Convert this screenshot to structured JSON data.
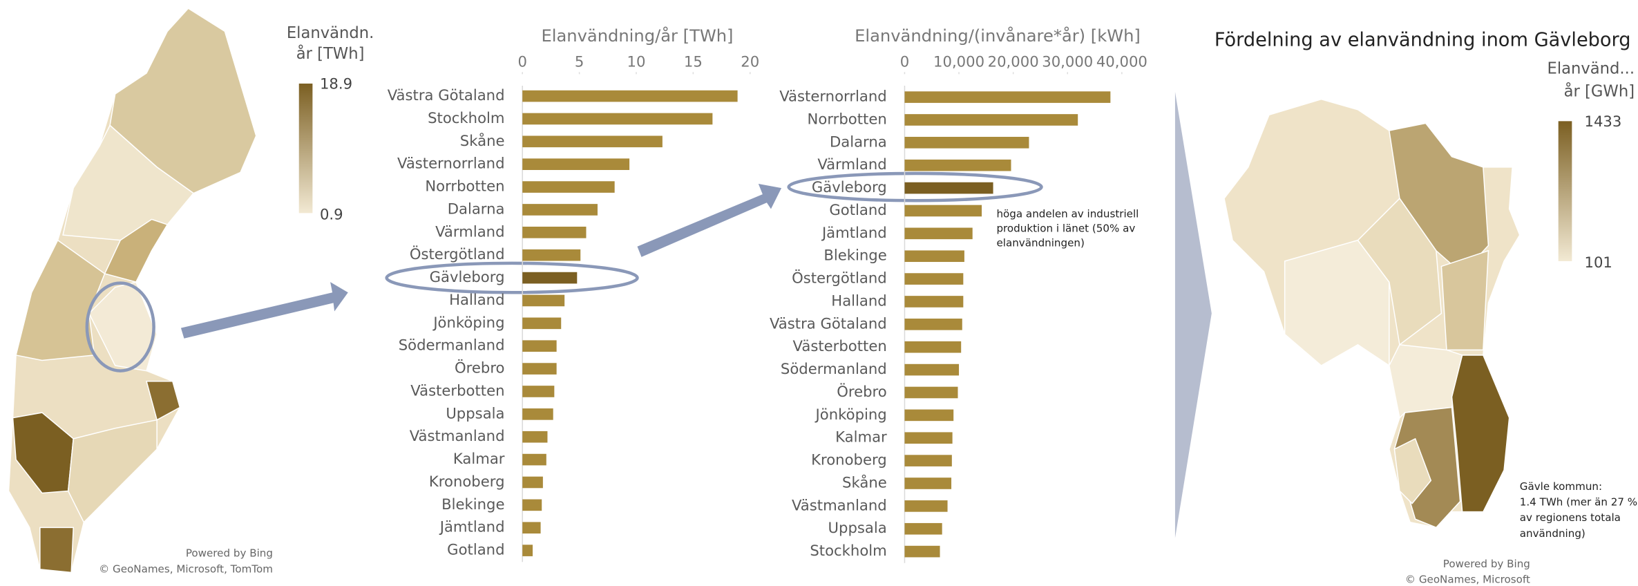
{
  "chart_data": [
    {
      "type": "map",
      "legend_title": [
        "Elanvändn.",
        "år [TWh]"
      ],
      "legend_max": 18.9,
      "legend_min": 0.9,
      "colors": [
        "#f2e9d3",
        "#7b5f22"
      ],
      "attribution": [
        "Powered by Bing",
        "© GeoNames, Microsoft, TomTom"
      ]
    },
    {
      "type": "bar",
      "x_label": "Elanvändning/år [TWh]",
      "categories": [
        "Västra Götaland",
        "Stockholm",
        "Skåne",
        "Västernorrland",
        "Norrbotten",
        "Dalarna",
        "Värmland",
        "Östergötland",
        "Gävleborg",
        "Halland",
        "Jönköping",
        "Södermanland",
        "Örebro",
        "Västerbotten",
        "Uppsala",
        "Västmanland",
        "Kalmar",
        "Kronoberg",
        "Blekinge",
        "Jämtland",
        "Gotland"
      ],
      "values": [
        18.9,
        16.7,
        12.3,
        9.4,
        8.1,
        6.6,
        5.6,
        5.1,
        4.8,
        3.7,
        3.4,
        3.0,
        3.0,
        2.8,
        2.7,
        2.2,
        2.1,
        1.8,
        1.7,
        1.6,
        0.9
      ],
      "xlim": [
        0,
        20
      ],
      "xticks": [
        0,
        5,
        10,
        15,
        20
      ],
      "color": "#a98a3a",
      "highlight": {
        "category": "Gävleborg",
        "color": "#7b5f22"
      }
    },
    {
      "type": "bar",
      "x_label": "Elanvändning/(invånare*år)  [kWh]",
      "categories": [
        "Västernorrland",
        "Norrbotten",
        "Dalarna",
        "Värmland",
        "Gävleborg",
        "Gotland",
        "Jämtland",
        "Blekinge",
        "Östergötland",
        "Halland",
        "Västra Götaland",
        "Västerbotten",
        "Södermanland",
        "Örebro",
        "Jönköping",
        "Kalmar",
        "Kronoberg",
        "Skåne",
        "Västmanland",
        "Uppsala",
        "Stockholm"
      ],
      "values": [
        37900,
        31900,
        22900,
        19600,
        16300,
        14200,
        12500,
        11000,
        10800,
        10800,
        10600,
        10400,
        10000,
        9800,
        9000,
        8800,
        8700,
        8600,
        7900,
        6900,
        6500
      ],
      "xlim": [
        0,
        45000
      ],
      "xticks": [
        0,
        {
          "value": 10000,
          "label": "10,000"
        },
        {
          "value": 20000,
          "label": "20,000"
        },
        {
          "value": 30000,
          "label": "30,000"
        },
        {
          "value": 40000,
          "label": "40,000"
        }
      ],
      "color": "#a98a3a",
      "highlight": {
        "category": "Gävleborg",
        "color": "#7b5f22"
      },
      "annotation": [
        "höga andelen av industriell",
        "produktion i länet (50% av",
        "elanvändningen)"
      ]
    },
    {
      "type": "map",
      "title": "Fördelning av elanvändning inom Gävleborg",
      "legend_title": [
        "Elanvänd...",
        "år [GWh]"
      ],
      "legend_max": 1433,
      "legend_min": 101,
      "colors": [
        "#f2e9d3",
        "#7b5f22"
      ],
      "annotation": [
        "Gävle kommun:",
        "1.4 TWh (mer än 27 %",
        "av regionens totala",
        "användning)"
      ],
      "attribution": [
        "Powered by Bing",
        "© GeoNames, Microsoft"
      ]
    }
  ]
}
